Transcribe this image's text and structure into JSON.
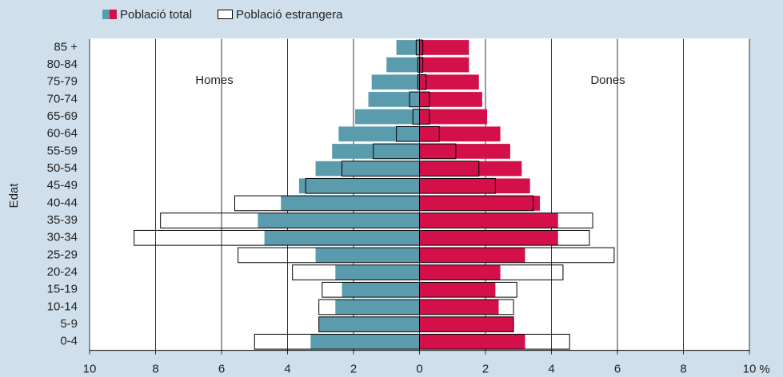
{
  "chart_data": {
    "type": "pyramid",
    "legend": [
      {
        "name": "Població total"
      },
      {
        "name": "Població estrangera"
      }
    ],
    "y_label": "Edat",
    "left_label": "Homes",
    "right_label": "Dones",
    "x_unit": "%",
    "categories": [
      "85 +",
      "80-84",
      "75-79",
      "70-74",
      "65-69",
      "60-64",
      "55-59",
      "50-54",
      "45-49",
      "40-44",
      "35-39",
      "30-34",
      "25-29",
      "20-24",
      "15-19",
      "10-14",
      "5-9",
      "0-4"
    ],
    "series": [
      {
        "name": "Població total",
        "color_men": "#5a9bae",
        "color_women": "#d3104a",
        "men": [
          0.7,
          1.0,
          1.45,
          1.55,
          1.95,
          2.45,
          2.65,
          3.15,
          3.65,
          4.2,
          4.9,
          4.7,
          3.15,
          2.55,
          2.35,
          2.55,
          3.05,
          3.3
        ],
        "women": [
          1.5,
          1.5,
          1.8,
          1.9,
          2.05,
          2.45,
          2.75,
          3.1,
          3.35,
          3.65,
          4.2,
          4.2,
          3.2,
          2.45,
          2.3,
          2.4,
          2.85,
          3.2
        ]
      },
      {
        "name": "Població estrangera",
        "color_men": "none",
        "color_women": "none",
        "men": [
          0.1,
          0.05,
          0.05,
          0.3,
          0.2,
          0.7,
          1.4,
          2.35,
          3.45,
          5.6,
          7.85,
          8.65,
          5.5,
          3.85,
          2.95,
          3.05,
          3.05,
          5.0
        ],
        "women": [
          0.1,
          0.1,
          0.2,
          0.3,
          0.3,
          0.6,
          1.1,
          1.8,
          2.3,
          3.45,
          5.25,
          5.15,
          5.9,
          4.35,
          2.95,
          2.85,
          2.85,
          4.55
        ]
      }
    ],
    "xlim": [
      -10,
      10
    ],
    "xticks": [
      {
        "value": -10,
        "label": "10"
      },
      {
        "value": -8,
        "label": "8"
      },
      {
        "value": -6,
        "label": "6"
      },
      {
        "value": -4,
        "label": "4"
      },
      {
        "value": -2,
        "label": "2"
      },
      0,
      2,
      4,
      6,
      8,
      10
    ],
    "grid": true
  }
}
